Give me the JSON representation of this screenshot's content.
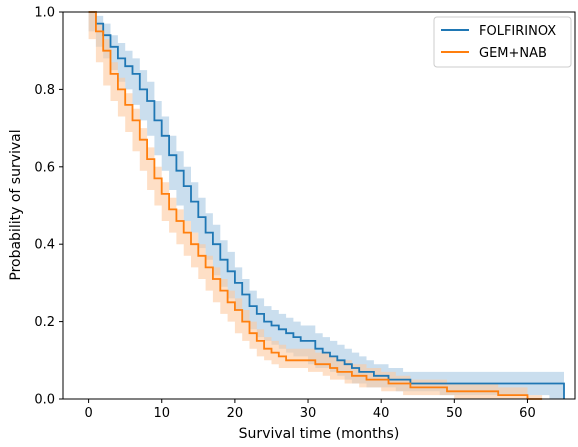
{
  "chart_data": {
    "type": "line",
    "subtype": "kaplan-meier survival curves with shaded confidence bands",
    "title": "",
    "xlabel": "Survival time (months)",
    "ylabel": "Probability of survival",
    "xlim": [
      -3.5,
      66.5
    ],
    "ylim": [
      0.0,
      1.0
    ],
    "xticks": [
      0,
      10,
      20,
      30,
      40,
      50,
      60
    ],
    "yticks": [
      0.0,
      0.2,
      0.4,
      0.6,
      0.8,
      1.0
    ],
    "xtick_labels": [
      "0",
      "10",
      "20",
      "30",
      "40",
      "50",
      "60"
    ],
    "ytick_labels": [
      "0.0",
      "0.2",
      "0.4",
      "0.6",
      "0.8",
      "1.0"
    ],
    "grid": false,
    "legend_position": "top-right",
    "series": [
      {
        "name": "FOLFIRINOX",
        "color": "#1f77b4",
        "band_color": "#a6c8e3",
        "x": [
          0,
          1,
          2,
          3,
          4,
          5,
          6,
          7,
          8,
          9,
          10,
          11,
          12,
          13,
          14,
          15,
          16,
          17,
          18,
          19,
          20,
          21,
          22,
          23,
          24,
          25,
          26,
          27,
          28,
          29,
          30,
          31,
          32,
          33,
          34,
          35,
          36,
          37,
          38,
          39,
          40,
          41,
          42,
          43,
          44,
          45,
          46,
          47,
          48,
          49,
          50,
          55,
          60,
          63,
          65
        ],
        "survival": [
          1.0,
          0.97,
          0.94,
          0.91,
          0.88,
          0.86,
          0.84,
          0.8,
          0.77,
          0.72,
          0.68,
          0.63,
          0.59,
          0.55,
          0.51,
          0.47,
          0.43,
          0.4,
          0.36,
          0.33,
          0.3,
          0.27,
          0.24,
          0.22,
          0.2,
          0.19,
          0.18,
          0.17,
          0.16,
          0.15,
          0.15,
          0.13,
          0.12,
          0.11,
          0.1,
          0.09,
          0.08,
          0.07,
          0.07,
          0.06,
          0.06,
          0.05,
          0.05,
          0.05,
          0.04,
          0.04,
          0.04,
          0.04,
          0.04,
          0.04,
          0.04,
          0.04,
          0.04,
          0.04,
          0.0
        ],
        "lower": [
          1.0,
          0.95,
          0.91,
          0.88,
          0.85,
          0.82,
          0.8,
          0.76,
          0.72,
          0.68,
          0.63,
          0.59,
          0.54,
          0.5,
          0.46,
          0.43,
          0.39,
          0.36,
          0.32,
          0.29,
          0.26,
          0.23,
          0.2,
          0.18,
          0.16,
          0.15,
          0.14,
          0.13,
          0.12,
          0.11,
          0.11,
          0.09,
          0.08,
          0.08,
          0.07,
          0.06,
          0.05,
          0.04,
          0.04,
          0.03,
          0.03,
          0.03,
          0.03,
          0.02,
          0.02,
          0.02,
          0.02,
          0.02,
          0.02,
          0.01,
          0.01,
          0.01,
          0.01,
          0.01,
          0.0
        ],
        "upper": [
          1.0,
          0.99,
          0.97,
          0.94,
          0.92,
          0.9,
          0.88,
          0.85,
          0.82,
          0.77,
          0.73,
          0.68,
          0.64,
          0.6,
          0.56,
          0.52,
          0.48,
          0.45,
          0.41,
          0.38,
          0.34,
          0.31,
          0.28,
          0.26,
          0.24,
          0.23,
          0.22,
          0.21,
          0.2,
          0.19,
          0.19,
          0.17,
          0.16,
          0.15,
          0.14,
          0.13,
          0.12,
          0.11,
          0.1,
          0.09,
          0.09,
          0.08,
          0.08,
          0.07,
          0.07,
          0.07,
          0.07,
          0.07,
          0.07,
          0.07,
          0.07,
          0.07,
          0.07,
          0.07,
          0.0
        ]
      },
      {
        "name": "GEM+NAB",
        "color": "#ff7f0e",
        "band_color": "#fdc9a0",
        "x": [
          0,
          1,
          2,
          3,
          4,
          5,
          6,
          7,
          8,
          9,
          10,
          11,
          12,
          13,
          14,
          15,
          16,
          17,
          18,
          19,
          20,
          21,
          22,
          23,
          24,
          25,
          26,
          27,
          28,
          29,
          30,
          31,
          32,
          33,
          34,
          35,
          36,
          37,
          38,
          39,
          40,
          41,
          42,
          43,
          44,
          45,
          46,
          47,
          48,
          49,
          50,
          52,
          54,
          56,
          58,
          60,
          62
        ],
        "survival": [
          1.0,
          0.95,
          0.9,
          0.84,
          0.8,
          0.76,
          0.72,
          0.67,
          0.62,
          0.57,
          0.53,
          0.49,
          0.46,
          0.43,
          0.4,
          0.37,
          0.34,
          0.31,
          0.28,
          0.25,
          0.23,
          0.2,
          0.17,
          0.15,
          0.13,
          0.12,
          0.11,
          0.1,
          0.1,
          0.1,
          0.1,
          0.09,
          0.09,
          0.08,
          0.07,
          0.07,
          0.06,
          0.06,
          0.05,
          0.05,
          0.05,
          0.04,
          0.04,
          0.04,
          0.03,
          0.03,
          0.03,
          0.03,
          0.03,
          0.02,
          0.02,
          0.02,
          0.02,
          0.01,
          0.01,
          0.0,
          0.0
        ],
        "lower": [
          1.0,
          0.93,
          0.87,
          0.81,
          0.77,
          0.73,
          0.69,
          0.64,
          0.59,
          0.54,
          0.5,
          0.46,
          0.43,
          0.4,
          0.37,
          0.34,
          0.31,
          0.28,
          0.25,
          0.22,
          0.2,
          0.17,
          0.15,
          0.13,
          0.11,
          0.1,
          0.09,
          0.08,
          0.08,
          0.08,
          0.08,
          0.07,
          0.07,
          0.06,
          0.05,
          0.05,
          0.04,
          0.04,
          0.03,
          0.03,
          0.03,
          0.02,
          0.02,
          0.02,
          0.01,
          0.01,
          0.01,
          0.01,
          0.01,
          0.01,
          0.01,
          0.0,
          0.0,
          0.0,
          0.0,
          0.0,
          0.0
        ],
        "upper": [
          1.0,
          0.97,
          0.93,
          0.87,
          0.83,
          0.79,
          0.75,
          0.7,
          0.65,
          0.6,
          0.56,
          0.52,
          0.49,
          0.46,
          0.43,
          0.4,
          0.37,
          0.34,
          0.31,
          0.28,
          0.26,
          0.23,
          0.2,
          0.18,
          0.16,
          0.15,
          0.14,
          0.13,
          0.13,
          0.13,
          0.13,
          0.12,
          0.12,
          0.11,
          0.1,
          0.1,
          0.09,
          0.09,
          0.08,
          0.08,
          0.07,
          0.07,
          0.06,
          0.06,
          0.05,
          0.05,
          0.05,
          0.05,
          0.05,
          0.04,
          0.04,
          0.04,
          0.04,
          0.03,
          0.03,
          0.01,
          0.0
        ]
      }
    ]
  }
}
